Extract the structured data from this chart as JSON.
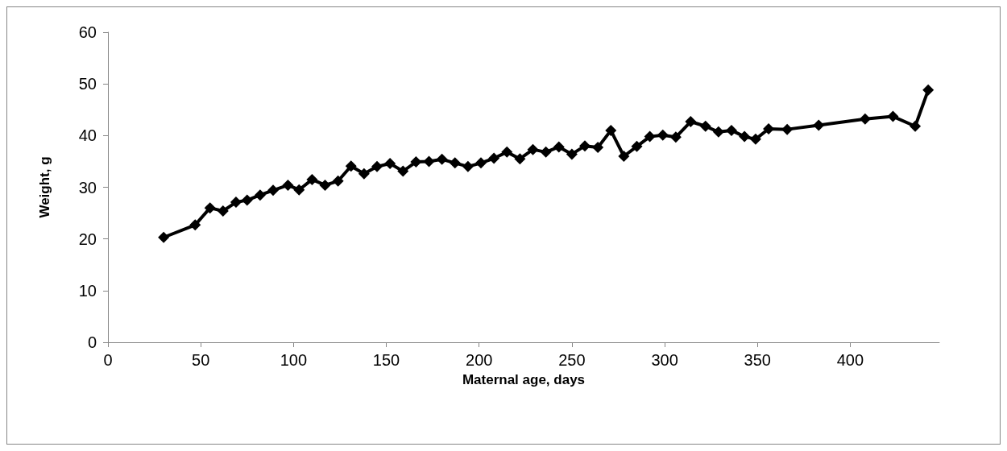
{
  "chart_data": {
    "type": "line",
    "xlabel": "Maternal age, days",
    "ylabel": "Weight, g",
    "xlim": [
      0,
      448
    ],
    "xticks": [
      0,
      50,
      100,
      150,
      200,
      250,
      300,
      350,
      400
    ],
    "ylim": [
      0,
      60
    ],
    "yticks": [
      0,
      10,
      20,
      30,
      40,
      50,
      60
    ],
    "grid": false,
    "marker": "diamond",
    "line_style": "solid",
    "series": [
      {
        "color": "#000000",
        "x": [
          30,
          47,
          55,
          62,
          69,
          75,
          82,
          89,
          97,
          103,
          110,
          117,
          124,
          131,
          138,
          145,
          152,
          159,
          166,
          173,
          180,
          187,
          194,
          201,
          208,
          215,
          222,
          229,
          236,
          243,
          250,
          257,
          264,
          271,
          278,
          285,
          292,
          299,
          306,
          314,
          322,
          329,
          336,
          343,
          349,
          356,
          366,
          383,
          408,
          423,
          435,
          442
        ],
        "values": [
          20.3,
          22.7,
          26,
          25.4,
          27.1,
          27.5,
          28.5,
          29.4,
          30.4,
          29.5,
          31.5,
          30.4,
          31.2,
          34.1,
          32.6,
          34,
          34.6,
          33.1,
          34.9,
          35,
          35.4,
          34.7,
          34,
          34.7,
          35.6,
          36.8,
          35.5,
          37.3,
          36.8,
          37.8,
          36.4,
          38,
          37.7,
          41,
          36,
          37.9,
          39.8,
          40.1,
          39.7,
          42.7,
          41.8,
          40.7,
          41,
          39.8,
          39.3,
          41.3,
          41.2,
          42,
          43.2,
          43.7,
          41.8,
          48.8
        ]
      }
    ]
  }
}
